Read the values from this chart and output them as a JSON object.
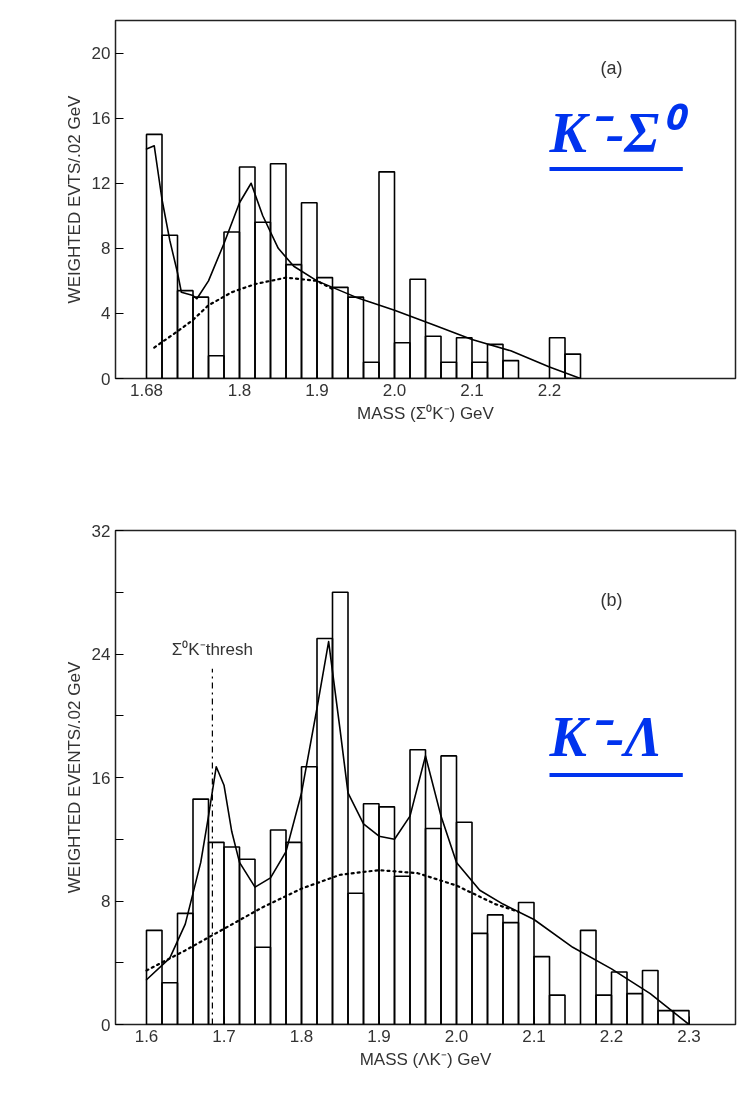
{
  "chart_data": [
    {
      "type": "histogram",
      "xlabel": "MASS (Σ⁰K⁻) GeV",
      "ylabel": "WEIGHTED EVTS/.02 GeV",
      "bins": [
        1.68,
        1.7,
        1.72,
        1.74,
        1.76,
        1.78,
        1.8,
        1.82,
        1.84,
        1.86,
        1.88,
        1.9,
        1.92,
        1.94,
        1.96,
        1.98,
        2.0,
        2.02,
        2.04,
        2.06,
        2.08,
        2.1,
        2.12,
        2.14,
        2.16,
        2.18,
        2.2,
        2.22,
        2.24
      ],
      "values": [
        15,
        8.8,
        5.4,
        5.0,
        1.4,
        9.0,
        13.0,
        9.6,
        13.2,
        7.0,
        10.8,
        6.2,
        5.6,
        5.0,
        1.0,
        12.7,
        2.2,
        6.1,
        2.6,
        1.0,
        2.5,
        1.0,
        2.1,
        1.1,
        0,
        0,
        2.5,
        1.5
      ],
      "color": "#000000",
      "series": [
        {
          "type": "line",
          "color": "#000000",
          "line_style": "solid",
          "x": [
            1.68,
            1.69,
            1.7,
            1.71,
            1.72,
            1.725,
            1.74,
            1.745,
            1.76,
            1.78,
            1.8,
            1.815,
            1.83,
            1.85,
            1.87,
            1.9,
            1.95,
            2.0,
            2.05,
            2.1,
            2.15,
            2.2,
            2.24
          ],
          "values": [
            14.1,
            14.3,
            11,
            8.5,
            6.5,
            5.3,
            5.1,
            4.9,
            6,
            8.3,
            10.8,
            12,
            10,
            8,
            6.9,
            6.0,
            5.0,
            4.2,
            3.3,
            2.4,
            1.7,
            0.7,
            0
          ]
        },
        {
          "type": "line",
          "color": "#000000",
          "line_style": "dotted",
          "x": [
            1.69,
            1.72,
            1.74,
            1.76,
            1.79,
            1.82,
            1.86,
            1.9,
            1.92
          ],
          "values": [
            1.9,
            2.9,
            3.6,
            4.5,
            5.3,
            5.8,
            6.2,
            6.0,
            5.5
          ]
        }
      ],
      "xlim": [
        1.64,
        2.44
      ],
      "ylim": [
        0,
        22
      ],
      "xticks": [
        1.68,
        1.8,
        1.9,
        {
          "value": 2,
          "label": "2.0"
        },
        2.1,
        2.2
      ],
      "yticks": [
        0,
        4,
        8,
        12,
        16,
        20
      ],
      "grid": false,
      "marker": "none",
      "annotations": [
        "(a)",
        "K⁻-Σ⁰"
      ]
    },
    {
      "type": "histogram",
      "xlabel": "MASS (ΛK⁻) GeV",
      "ylabel": "WEIGHTED EVENTS/.02 GeV",
      "bins": [
        1.6,
        1.62,
        1.64,
        1.66,
        1.68,
        1.7,
        1.72,
        1.74,
        1.76,
        1.78,
        1.8,
        1.82,
        1.84,
        1.86,
        1.88,
        1.9,
        1.92,
        1.94,
        1.96,
        1.98,
        2.0,
        2.02,
        2.04,
        2.06,
        2.08,
        2.1,
        2.12,
        2.14,
        2.16,
        2.18,
        2.2,
        2.22,
        2.24,
        2.26,
        2.28,
        2.3
      ],
      "values": [
        6.1,
        2.7,
        7.2,
        14.6,
        11.8,
        11.5,
        10.7,
        5.0,
        12.6,
        11.8,
        16.7,
        25.0,
        28.0,
        8.5,
        14.3,
        14.1,
        9.6,
        17.8,
        12.7,
        17.4,
        13.1,
        5.9,
        7.1,
        6.6,
        7.9,
        4.4,
        1.9,
        0,
        6.1,
        1.9,
        3.4,
        2.0,
        3.5,
        0.9,
        0.9
      ],
      "color": "#000000",
      "series": [
        {
          "type": "line",
          "color": "#000000",
          "line_style": "solid",
          "x": [
            1.6,
            1.63,
            1.65,
            1.67,
            1.68,
            1.69,
            1.7,
            1.71,
            1.72,
            1.74,
            1.76,
            1.78,
            1.8,
            1.82,
            1.835,
            1.85,
            1.86,
            1.88,
            1.9,
            1.92,
            1.94,
            1.96,
            1.98,
            2.0,
            2.03,
            2.06,
            2.1,
            2.15,
            2.2,
            2.25,
            2.3
          ],
          "values": [
            2.9,
            4.3,
            6.5,
            10.5,
            13.5,
            16.7,
            15.5,
            12.5,
            10.5,
            8.9,
            9.5,
            11.2,
            15,
            20.5,
            24.8,
            19,
            15,
            13.0,
            12.2,
            12.0,
            13.5,
            17.4,
            13.5,
            10.5,
            8.7,
            7.8,
            6.8,
            5.0,
            3.6,
            2.0,
            0
          ]
        },
        {
          "type": "line",
          "color": "#000000",
          "line_style": "dotted",
          "x": [
            1.6,
            1.65,
            1.7,
            1.75,
            1.8,
            1.85,
            1.9,
            1.95,
            2.0,
            2.05,
            2.08
          ],
          "values": [
            3.5,
            4.8,
            6.2,
            7.6,
            8.8,
            9.7,
            10.0,
            9.8,
            9.0,
            7.8,
            7.3
          ]
        }
      ],
      "xlim": [
        1.56,
        2.36
      ],
      "ylim": [
        0,
        32
      ],
      "xticks": [
        1.6,
        1.7,
        1.8,
        1.9,
        {
          "value": 2,
          "label": "2.0"
        },
        2.1,
        2.2,
        2.3
      ],
      "yticks": [
        0,
        {
          "value": 4,
          "label": null
        },
        8,
        {
          "value": 12,
          "label": null
        },
        16,
        {
          "value": 20,
          "label": null
        },
        24,
        {
          "value": 28,
          "label": null
        },
        32
      ],
      "ref_lines": [
        {
          "axis": "x",
          "value": 1.685,
          "label": "Σ⁰K⁻thresh",
          "line_style": "dashed",
          "color": "#000000"
        }
      ],
      "grid": false,
      "marker": "none",
      "annotations": [
        "(b)",
        "K⁻-Λ"
      ]
    }
  ]
}
